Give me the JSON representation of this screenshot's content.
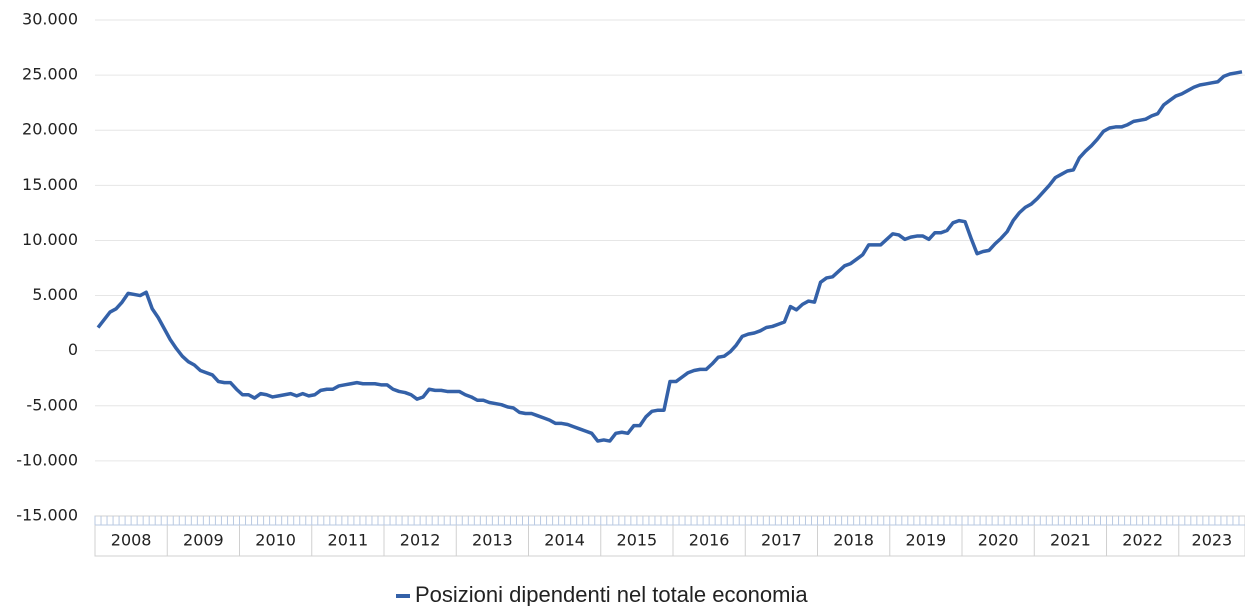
{
  "chart_data": {
    "type": "line",
    "categories": [
      "2008",
      null,
      null,
      null,
      null,
      null,
      null,
      null,
      null,
      null,
      null,
      null,
      "2009",
      null,
      null,
      null,
      null,
      null,
      null,
      null,
      null,
      null,
      null,
      null,
      "2010",
      null,
      null,
      null,
      null,
      null,
      null,
      null,
      null,
      null,
      null,
      null,
      "2011",
      null,
      null,
      null,
      null,
      null,
      null,
      null,
      null,
      null,
      null,
      null,
      "2012",
      null,
      null,
      null,
      null,
      null,
      null,
      null,
      null,
      null,
      null,
      null,
      "2013",
      null,
      null,
      null,
      null,
      null,
      null,
      null,
      null,
      null,
      null,
      null,
      "2014",
      null,
      null,
      null,
      null,
      null,
      null,
      null,
      null,
      null,
      null,
      null,
      "2015",
      null,
      null,
      null,
      null,
      null,
      null,
      null,
      null,
      null,
      null,
      null,
      "2016",
      null,
      null,
      null,
      null,
      null,
      null,
      null,
      null,
      null,
      null,
      null,
      "2017",
      null,
      null,
      null,
      null,
      null,
      null,
      null,
      null,
      null,
      null,
      null,
      "2018",
      null,
      null,
      null,
      null,
      null,
      null,
      null,
      null,
      null,
      null,
      null,
      "2019",
      null,
      null,
      null,
      null,
      null,
      null,
      null,
      null,
      null,
      null,
      null,
      "2020",
      null,
      null,
      null,
      null,
      null,
      null,
      null,
      null,
      null,
      null,
      null,
      "2021",
      null,
      null,
      null,
      null,
      null,
      null,
      null,
      null,
      null,
      null,
      null,
      "2022",
      null,
      null,
      null,
      null,
      null,
      null,
      null,
      null,
      null,
      null,
      null,
      "2023",
      null,
      null,
      null,
      null,
      null,
      null,
      null,
      null,
      null,
      null
    ],
    "series": [
      {
        "name": "Posizioni dipendenti nel totale economia",
        "color": "#3461a8",
        "values": [
          2100,
          2800,
          3500,
          3800,
          4400,
          5200,
          5100,
          5000,
          5300,
          3800,
          3000,
          2000,
          1000,
          200,
          -500,
          -1000,
          -1300,
          -1800,
          -2000,
          -2200,
          -2800,
          -2900,
          -2900,
          -3500,
          -4000,
          -4000,
          -4300,
          -3900,
          -4000,
          -4200,
          -4100,
          -4000,
          -3900,
          -4100,
          -3900,
          -4100,
          -4000,
          -3600,
          -3500,
          -3500,
          -3200,
          -3100,
          -3000,
          -2900,
          -3000,
          -3000,
          -3000,
          -3100,
          -3100,
          -3500,
          -3700,
          -3800,
          -4000,
          -4400,
          -4200,
          -3500,
          -3600,
          -3600,
          -3700,
          -3700,
          -3700,
          -4000,
          -4200,
          -4500,
          -4500,
          -4700,
          -4800,
          -4900,
          -5100,
          -5200,
          -5600,
          -5700,
          -5700,
          -5900,
          -6100,
          -6300,
          -6600,
          -6600,
          -6700,
          -6900,
          -7100,
          -7300,
          -7500,
          -8200,
          -8100,
          -8200,
          -7500,
          -7400,
          -7500,
          -6800,
          -6800,
          -6000,
          -5500,
          -5400,
          -5400,
          -2800,
          -2800,
          -2400,
          -2000,
          -1800,
          -1700,
          -1700,
          -1200,
          -600,
          -500,
          -100,
          500,
          1300,
          1500,
          1600,
          1800,
          2100,
          2200,
          2400,
          2600,
          4000,
          3700,
          4200,
          4500,
          4400,
          6200,
          6600,
          6700,
          7200,
          7700,
          7900,
          8300,
          8700,
          9600,
          9600,
          9600,
          10100,
          10600,
          10500,
          10100,
          10300,
          10400,
          10400,
          10100,
          10700,
          10700,
          10900,
          11600,
          11800,
          11700,
          10200,
          8800,
          9000,
          9100,
          9700,
          10200,
          10800,
          11800,
          12500,
          13000,
          13300,
          13800,
          14400,
          15000,
          15700,
          16000,
          16300,
          16400,
          17500,
          18100,
          18600,
          19200,
          19900,
          20200,
          20300,
          20300,
          20500,
          20800,
          20900,
          21000,
          21300,
          21500,
          22300,
          22700,
          23100,
          23300,
          23600,
          23900,
          24100,
          24200,
          24300,
          24400,
          24900,
          25100,
          25200,
          25300
        ]
      }
    ],
    "ylim": [
      -15000,
      30000
    ],
    "yticks": [
      {
        "value": -15000,
        "label": "-15.000"
      },
      {
        "value": -10000,
        "label": "-10.000"
      },
      {
        "value": -5000,
        "label": "-5.000"
      },
      0,
      {
        "value": 5000,
        "label": "5.000"
      },
      {
        "value": 10000,
        "label": "10.000"
      },
      {
        "value": 15000,
        "label": "15.000"
      },
      {
        "value": 20000,
        "label": "20.000"
      },
      {
        "value": 25000,
        "label": "25.000"
      },
      {
        "value": 30000,
        "label": "30.000"
      }
    ],
    "grid": true,
    "legend": "bottom"
  }
}
